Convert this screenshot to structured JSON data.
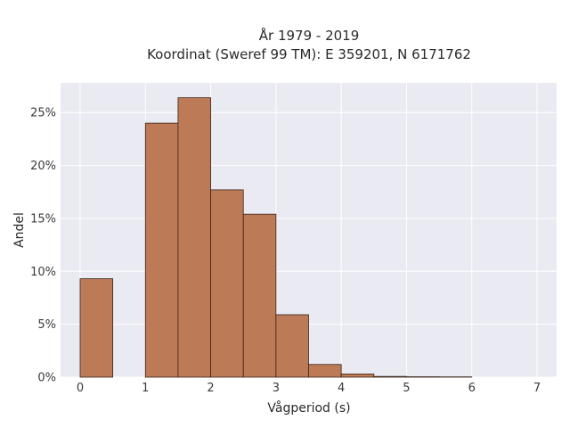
{
  "chart_data": {
    "type": "bar",
    "title_line1": "År 1979 - 2019",
    "title_line2": "Koordinat (Sweref 99 TM): E 359201, N 6171762",
    "xlabel": "Vågperiod (s)",
    "ylabel": "Andel",
    "xlim": [
      -0.3,
      7.3
    ],
    "ylim": [
      0,
      0.278
    ],
    "xticks": [
      0,
      1,
      2,
      3,
      4,
      5,
      6,
      7
    ],
    "yticks": [
      0,
      0.05,
      0.1,
      0.15,
      0.2,
      0.25
    ],
    "ytick_labels": [
      "0%",
      "5%",
      "10%",
      "15%",
      "20%",
      "25%"
    ],
    "bin_width": 0.5,
    "bins": [
      {
        "x0": 0.0,
        "value": 0.093
      },
      {
        "x0": 1.0,
        "value": 0.24
      },
      {
        "x0": 1.5,
        "value": 0.264
      },
      {
        "x0": 2.0,
        "value": 0.177
      },
      {
        "x0": 2.5,
        "value": 0.154
      },
      {
        "x0": 3.0,
        "value": 0.059
      },
      {
        "x0": 3.5,
        "value": 0.012
      },
      {
        "x0": 4.0,
        "value": 0.003
      },
      {
        "x0": 4.5,
        "value": 0.0007
      },
      {
        "x0": 5.0,
        "value": 0.0004
      },
      {
        "x0": 5.5,
        "value": 0.0003
      }
    ],
    "grid": true,
    "bar_color": "#bc7a56",
    "bar_edge_color": "#3a2418",
    "plot_background": "#eaeaf2"
  }
}
